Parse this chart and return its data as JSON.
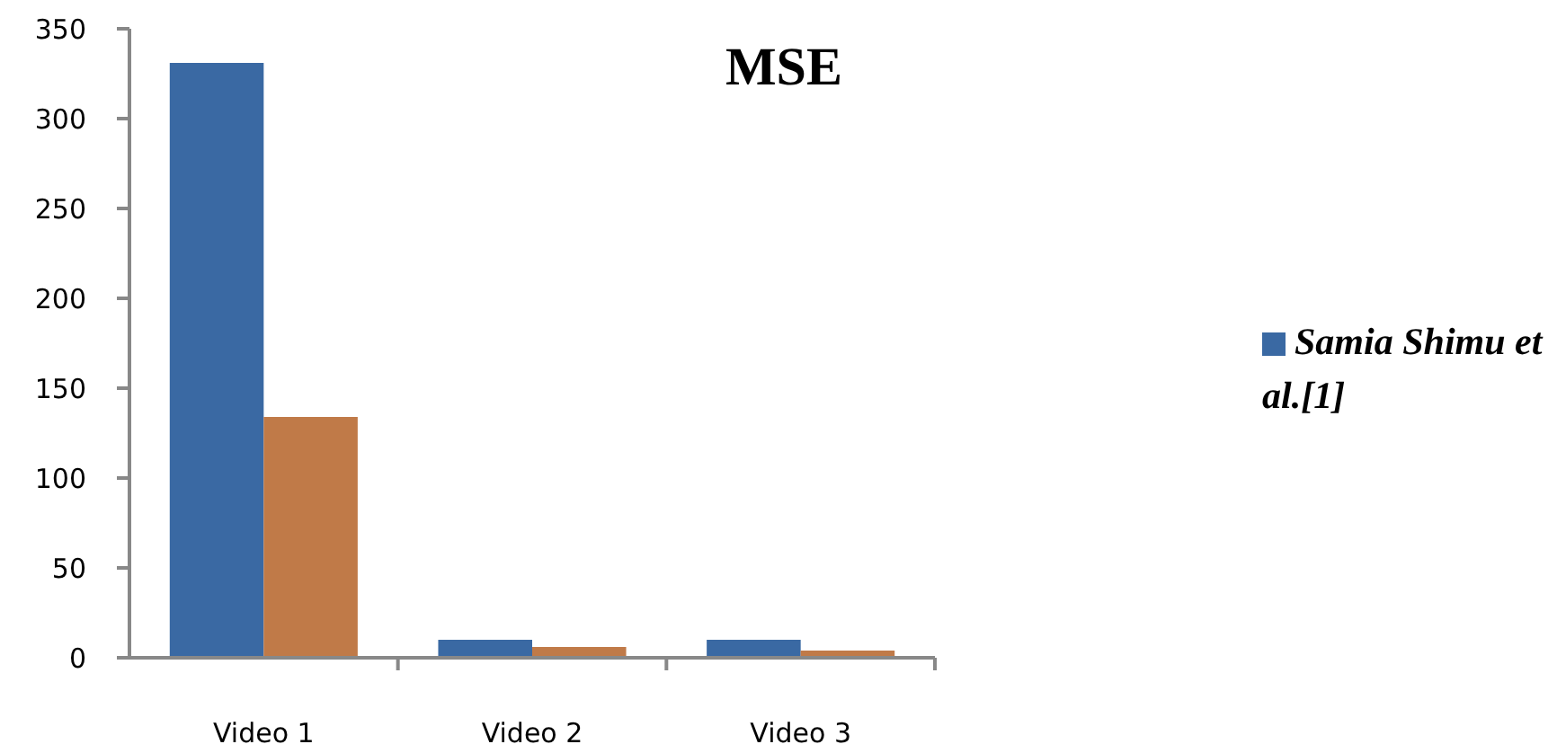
{
  "chart_data": {
    "type": "bar",
    "title": "MSE",
    "categories": [
      "Video 1",
      "Video 2",
      "Video 3"
    ],
    "series": [
      {
        "name": "Samia Shimu et al.[1]",
        "color": "#3a69a3",
        "values": [
          331,
          10,
          10
        ]
      },
      {
        "color": "#c07a48",
        "values": [
          134,
          6,
          4
        ]
      }
    ],
    "ylim": [
      0,
      350
    ],
    "yticks": [
      0,
      50,
      100,
      150,
      200,
      250,
      300,
      350
    ],
    "grid": false,
    "legend": "right"
  }
}
